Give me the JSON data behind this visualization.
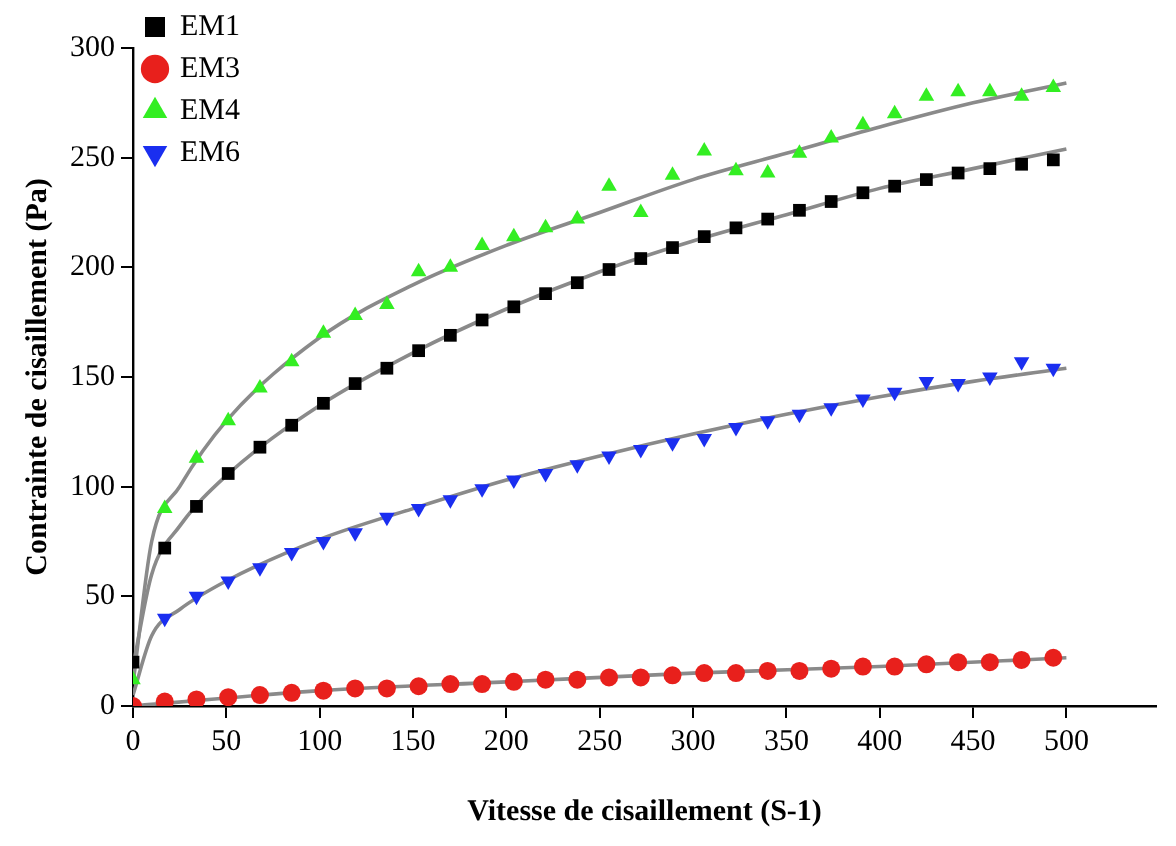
{
  "chart_data": {
    "type": "scatter",
    "xlabel": "Vitesse de cisaillement (S-1)",
    "ylabel": "Contrainte de cisaillement (Pa)",
    "x": [
      0,
      17,
      34,
      51,
      68,
      85,
      102,
      119,
      136,
      153,
      170,
      187,
      204,
      221,
      238,
      255,
      272,
      289,
      306,
      323,
      340,
      357,
      374,
      391,
      408,
      425,
      442,
      459,
      476,
      493
    ],
    "series": [
      {
        "name": "EM1",
        "color": "#000000",
        "marker": "square",
        "values": [
          20,
          72,
          91,
          106,
          118,
          128,
          138,
          147,
          154,
          162,
          169,
          176,
          182,
          188,
          193,
          199,
          204,
          209,
          214,
          218,
          222,
          226,
          230,
          234,
          237,
          240,
          243,
          245,
          247,
          249
        ]
      },
      {
        "name": "EM3",
        "color": "#e8201c",
        "marker": "circle",
        "values": [
          0,
          2,
          3,
          4,
          5,
          6,
          7,
          8,
          8,
          9,
          10,
          10,
          11,
          12,
          12,
          13,
          13,
          14,
          15,
          15,
          16,
          16,
          17,
          18,
          18,
          19,
          20,
          20,
          21,
          22
        ]
      },
      {
        "name": "EM4",
        "color": "#33ee22",
        "marker": "triangle",
        "values": [
          12,
          90,
          113,
          130,
          145,
          157,
          170,
          178,
          183,
          198,
          200,
          210,
          214,
          218,
          222,
          237,
          225,
          242,
          253,
          244,
          243,
          252,
          259,
          265,
          270,
          278,
          280,
          280,
          278,
          282
        ]
      },
      {
        "name": "EM6",
        "color": "#1a2ef0",
        "marker": "triangle_down",
        "values": [
          null,
          40,
          50,
          57,
          63,
          70,
          75,
          79,
          86,
          90,
          94,
          99,
          103,
          106,
          110,
          114,
          117,
          120,
          122,
          127,
          130,
          133,
          136,
          140,
          143,
          148,
          147,
          150,
          157,
          154
        ]
      },
      {
        "type": "line",
        "color": "#8a8a8a",
        "marker": "none",
        "x": [
          0,
          10,
          25,
          50,
          100,
          150,
          200,
          250,
          300,
          350,
          400,
          450,
          500
        ],
        "values": [
          18,
          60,
          82,
          105,
          137,
          161,
          181,
          198,
          212,
          224,
          236,
          245,
          254
        ]
      },
      {
        "type": "line",
        "color": "#8a8a8a",
        "marker": "none",
        "x": [
          0,
          100,
          200,
          300,
          400,
          500
        ],
        "values": [
          0,
          7,
          11,
          15,
          18,
          22
        ]
      },
      {
        "type": "line",
        "color": "#8a8a8a",
        "marker": "none",
        "x": [
          0,
          10,
          25,
          50,
          100,
          150,
          200,
          250,
          300,
          350,
          400,
          450,
          500
        ],
        "values": [
          10,
          75,
          100,
          130,
          168,
          192,
          210,
          225,
          240,
          252,
          264,
          275,
          284
        ]
      },
      {
        "type": "line",
        "color": "#8a8a8a",
        "marker": "none",
        "x": [
          0,
          10,
          25,
          50,
          100,
          150,
          200,
          250,
          300,
          350,
          400,
          450,
          500
        ],
        "values": [
          5,
          32,
          44,
          57,
          76,
          90,
          103,
          114,
          124,
          133,
          141,
          148,
          154
        ]
      }
    ],
    "xlim": [
      0,
      548
    ],
    "xticks": [
      0,
      50,
      100,
      150,
      200,
      250,
      300,
      350,
      400,
      450,
      500
    ],
    "ylim": [
      0,
      300
    ],
    "yticks": [
      0,
      50,
      100,
      150,
      200,
      250,
      300
    ],
    "grid": false,
    "legend": "top left"
  }
}
